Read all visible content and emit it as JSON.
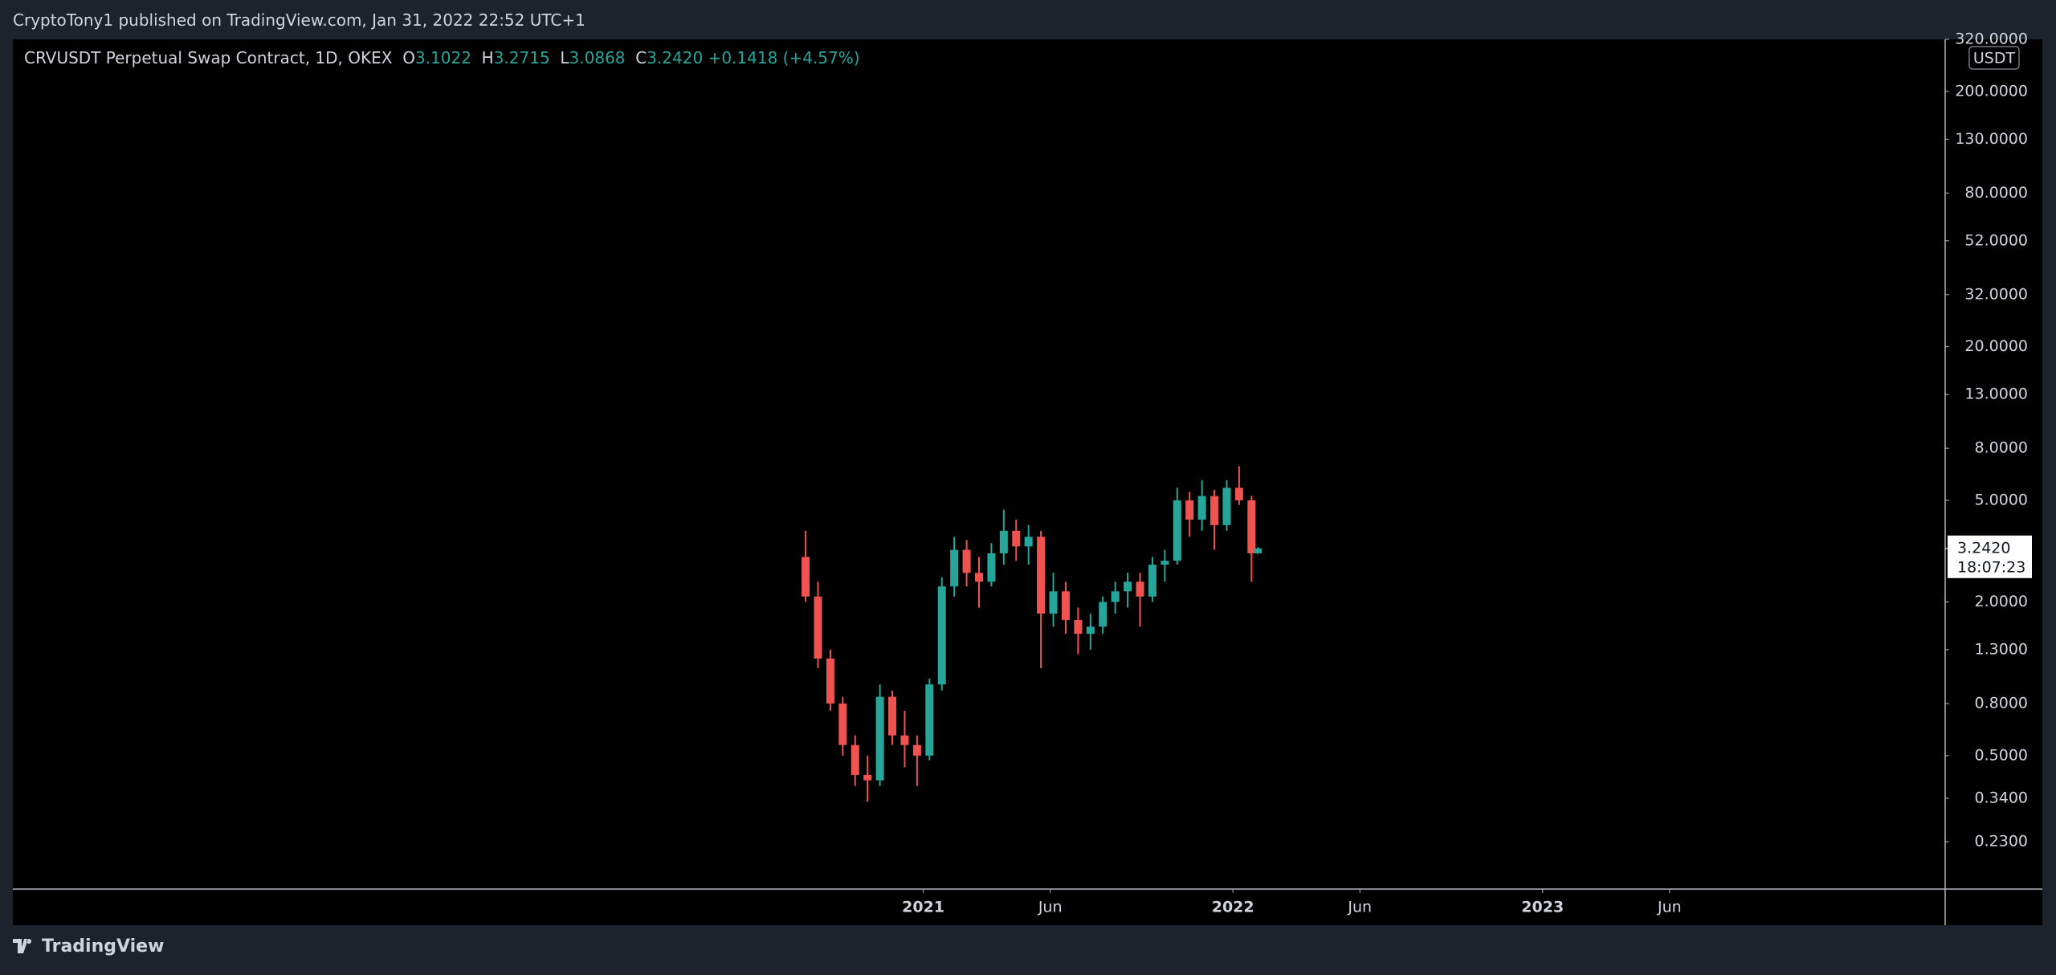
{
  "header": {
    "publisher": "CryptoTony1 published on TradingView.com, Jan 31, 2022 22:52 UTC+1"
  },
  "legend": {
    "symbol": "CRVUSDT Perpetual Swap Contract, 1D, OKEX",
    "open_label": "O",
    "open": "3.1022",
    "high_label": "H",
    "high": "3.2715",
    "low_label": "L",
    "low": "3.0868",
    "close_label": "C",
    "close": "3.2420",
    "change": "+0.1418 (+4.57%)"
  },
  "chart_data": {
    "type": "candlestick",
    "x": [
      2020.62,
      2020.66,
      2020.7,
      2020.74,
      2020.78,
      2020.82,
      2020.86,
      2020.9,
      2020.94,
      2020.98,
      2021.02,
      2021.06,
      2021.1,
      2021.14,
      2021.18,
      2021.22,
      2021.26,
      2021.3,
      2021.34,
      2021.38,
      2021.42,
      2021.46,
      2021.5,
      2021.54,
      2021.58,
      2021.62,
      2021.66,
      2021.7,
      2021.74,
      2021.78,
      2021.82,
      2021.86,
      2021.9,
      2021.94,
      2021.98,
      2022.02,
      2022.06,
      2022.08
    ],
    "open": [
      3.0,
      2.1,
      1.2,
      0.8,
      0.55,
      0.42,
      0.4,
      0.85,
      0.6,
      0.55,
      0.5,
      0.95,
      2.3,
      3.2,
      2.6,
      2.4,
      3.1,
      3.8,
      3.3,
      3.6,
      1.8,
      2.2,
      1.7,
      1.5,
      1.6,
      2.0,
      2.2,
      2.4,
      2.1,
      2.8,
      2.9,
      5.0,
      4.2,
      5.2,
      4.0,
      5.6,
      5.0,
      3.1022
    ],
    "high": [
      3.8,
      2.4,
      1.3,
      0.85,
      0.6,
      0.5,
      0.95,
      0.9,
      0.75,
      0.6,
      1.0,
      2.5,
      3.6,
      3.5,
      3.0,
      3.4,
      4.6,
      4.2,
      4.0,
      3.8,
      2.6,
      2.4,
      1.9,
      1.8,
      2.1,
      2.4,
      2.6,
      2.6,
      3.0,
      3.2,
      5.6,
      5.4,
      6.0,
      5.5,
      6.0,
      6.8,
      5.2,
      3.2715
    ],
    "low": [
      2.0,
      1.1,
      0.75,
      0.5,
      0.38,
      0.33,
      0.38,
      0.55,
      0.45,
      0.38,
      0.48,
      0.9,
      2.1,
      2.3,
      1.9,
      2.3,
      2.8,
      2.9,
      2.8,
      1.1,
      1.6,
      1.5,
      1.25,
      1.3,
      1.5,
      1.8,
      1.9,
      1.6,
      2.0,
      2.4,
      2.8,
      3.6,
      3.8,
      3.2,
      3.8,
      4.8,
      2.4,
      3.0868
    ],
    "close": [
      2.1,
      1.2,
      0.8,
      0.55,
      0.42,
      0.4,
      0.85,
      0.6,
      0.55,
      0.5,
      0.95,
      2.3,
      3.2,
      2.6,
      2.4,
      3.1,
      3.8,
      3.3,
      3.6,
      1.8,
      2.2,
      1.7,
      1.5,
      1.6,
      2.0,
      2.2,
      2.4,
      2.1,
      2.8,
      2.9,
      5.0,
      4.2,
      5.2,
      4.0,
      5.6,
      5.0,
      3.1,
      3.242
    ],
    "up_color": "#26a69a",
    "down_color": "#ef5350",
    "log_scale": true,
    "xlim": [
      2018.06,
      2024.3
    ],
    "xticks": [
      {
        "value": 2021,
        "label": "2021"
      },
      {
        "value": 2021.41,
        "label": "Jun"
      },
      {
        "value": 2022,
        "label": "2022"
      },
      {
        "value": 2022.41,
        "label": "Jun"
      },
      {
        "value": 2023,
        "label": "2023"
      },
      {
        "value": 2023.41,
        "label": "Jun"
      }
    ],
    "ylim": [
      0.15,
      320
    ],
    "yticks": [
      {
        "value": 0.23,
        "label": "0.2300"
      },
      {
        "value": 0.34,
        "label": "0.3400"
      },
      {
        "value": 0.5,
        "label": "0.5000"
      },
      {
        "value": 0.8,
        "label": "0.8000"
      },
      {
        "value": 1.3,
        "label": "1.3000"
      },
      {
        "value": 2,
        "label": "2.0000"
      },
      {
        "value": 5,
        "label": "5.0000"
      },
      {
        "value": 8,
        "label": "8.0000"
      },
      {
        "value": 13,
        "label": "13.0000"
      },
      {
        "value": 20,
        "label": "20.0000"
      },
      {
        "value": 32,
        "label": "32.0000"
      },
      {
        "value": 52,
        "label": "52.0000"
      },
      {
        "value": 80,
        "label": "80.0000"
      },
      {
        "value": 130,
        "label": "130.0000"
      },
      {
        "value": 200,
        "label": "200.0000"
      },
      {
        "value": 320,
        "label": "320.0000"
      }
    ],
    "currency": "USDT",
    "last_price": {
      "value": 3.242,
      "label": "3.2420"
    },
    "countdown": "18:07:23"
  },
  "footer": {
    "brand": "TradingView"
  }
}
